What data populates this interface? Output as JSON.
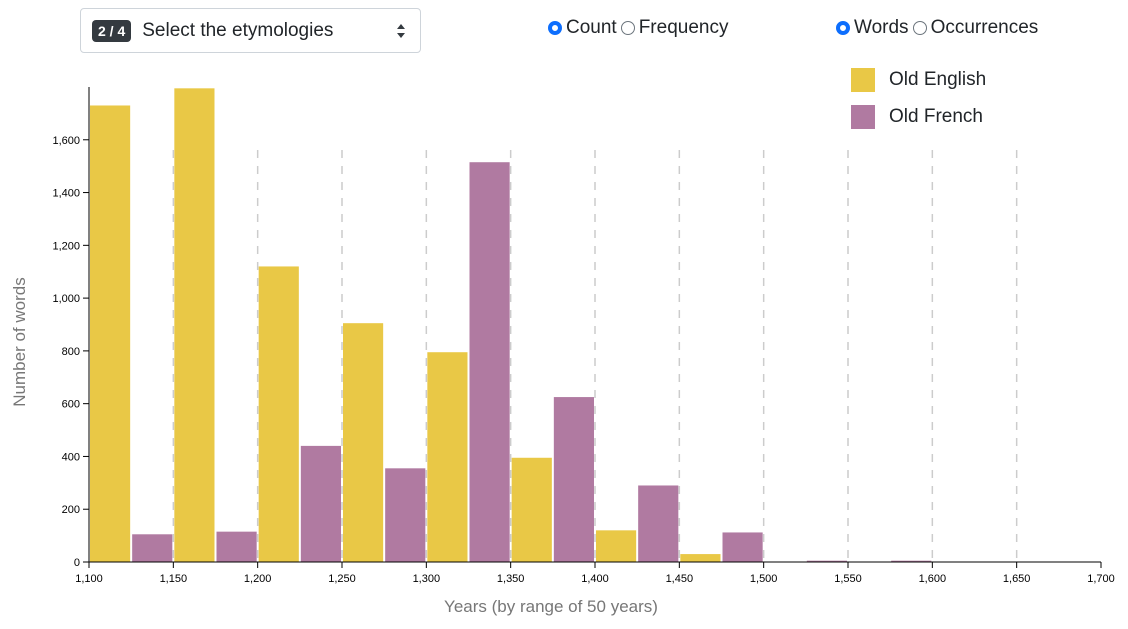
{
  "selector": {
    "badge": "2 / 4",
    "label": "Select the etymologies"
  },
  "mode_toggle": {
    "options": [
      "Count",
      "Frequency"
    ],
    "selected": "Count"
  },
  "unit_toggle": {
    "options": [
      "Words",
      "Occurrences"
    ],
    "selected": "Words"
  },
  "colors": {
    "old_english": "#e9c846",
    "old_french": "#b07aa1",
    "grid": "#cccccc",
    "radio_accent": "#0d6efd"
  },
  "chart_data": {
    "type": "bar",
    "xlabel": "Years (by range of 50 years)",
    "ylabel": "Number of words",
    "xlim": [
      1100,
      1700
    ],
    "ylim": [
      0,
      1800
    ],
    "x_ticks": [
      "1,100",
      "1,150",
      "1,200",
      "1,250",
      "1,300",
      "1,350",
      "1,400",
      "1,450",
      "1,500",
      "1,550",
      "1,600",
      "1,650",
      "1,700"
    ],
    "y_ticks": [
      "0",
      "200",
      "400",
      "600",
      "800",
      "1,000",
      "1,200",
      "1,400",
      "1,600"
    ],
    "categories": [
      1100,
      1150,
      1200,
      1250,
      1300,
      1350,
      1400,
      1450,
      1500,
      1550,
      1600,
      1650
    ],
    "legend": "top-right",
    "grid": "vertical dashed",
    "series": [
      {
        "name": "Old English",
        "values": [
          1730,
          1795,
          1120,
          905,
          795,
          395,
          120,
          30,
          0,
          0,
          0,
          0
        ]
      },
      {
        "name": "Old French",
        "values": [
          105,
          115,
          440,
          355,
          1515,
          625,
          290,
          112,
          5,
          5,
          0,
          0
        ]
      }
    ]
  }
}
